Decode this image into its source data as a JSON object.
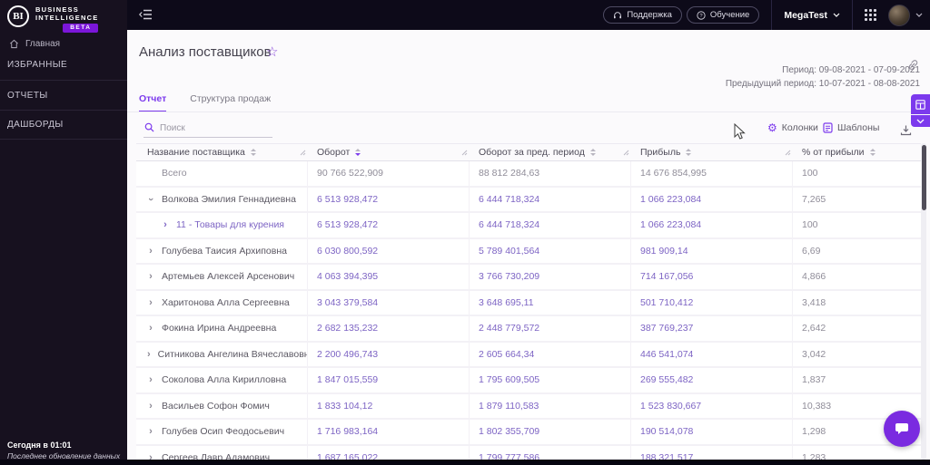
{
  "brand": {
    "logo": "BI",
    "name_line1": "BUSINESS",
    "name_line2": "INTELLIGENCE",
    "beta": "BETA"
  },
  "sidebar": {
    "items": [
      {
        "label": "Главная"
      },
      {
        "label": "ИЗБРАННЫЕ"
      },
      {
        "label": "ОТЧЕТЫ"
      },
      {
        "label": "ДАШБОРДЫ"
      }
    ],
    "footer": {
      "time": "Сегодня в 01:01",
      "caption": "Последнее обновление данных"
    }
  },
  "topbar": {
    "support": "Поддержка",
    "training": "Обучение",
    "workspace": "MegaTest"
  },
  "page": {
    "title": "Анализ поставщиков",
    "period": "Период: 09-08-2021 - 07-09-2021",
    "prev_period": "Предыдущий период: 10-07-2021 - 08-08-2021"
  },
  "tabs": [
    {
      "label": "Отчет",
      "active": true
    },
    {
      "label": "Структура продаж",
      "active": false
    }
  ],
  "toolbar": {
    "search_placeholder": "Поиск",
    "columns_label": "Колонки",
    "templates_label": "Шаблоны"
  },
  "icons": {
    "favorite_star": "☆",
    "columns_gear": "⚙",
    "expand_chevron": "›",
    "search": "magnifier",
    "templates": "document",
    "download": "download-arrow",
    "link": "chain",
    "apps": "grid-3x3",
    "support": "headset",
    "training": "question-circle",
    "chat": "speech-bubble"
  },
  "colors": {
    "accent": "#7c3aed",
    "number_text": "#7d64c4",
    "beta_badge": "#7b16d9",
    "fab": "#7a2be0"
  },
  "table": {
    "columns": [
      "Название поставщика",
      "Оборот",
      "Оборот за пред. период",
      "Прибыль",
      "% от прибыли"
    ],
    "sorted_column_index": 1,
    "sort_direction": "desc",
    "rows": [
      {
        "type": "total",
        "name": "Всего",
        "turnover": "90 766 522,909",
        "prev": "88 812 284,63",
        "profit": "14 676 854,995",
        "pct": "100"
      },
      {
        "type": "expanded",
        "name": "Волкова Эмилия Геннадиевна",
        "turnover": "6 513 928,472",
        "prev": "6 444 718,324",
        "profit": "1 066 223,084",
        "pct": "7,265"
      },
      {
        "type": "child",
        "name": "11 - Товары для курения",
        "turnover": "6 513 928,472",
        "prev": "6 444 718,324",
        "profit": "1 066 223,084",
        "pct": "100"
      },
      {
        "type": "row",
        "name": "Голубева Таисия Архиповна",
        "turnover": "6 030 800,592",
        "prev": "5 789 401,564",
        "profit": "981 909,14",
        "pct": "6,69"
      },
      {
        "type": "row",
        "name": "Артемьев Алексей Арсенович",
        "turnover": "4 063 394,395",
        "prev": "3 766 730,209",
        "profit": "714 167,056",
        "pct": "4,866"
      },
      {
        "type": "row",
        "name": "Харитонова Алла Сергеевна",
        "turnover": "3 043 379,584",
        "prev": "3 648 695,11",
        "profit": "501 710,412",
        "pct": "3,418"
      },
      {
        "type": "row",
        "name": "Фокина Ирина Андреевна",
        "turnover": "2 682 135,232",
        "prev": "2 448 779,572",
        "profit": "387 769,237",
        "pct": "2,642"
      },
      {
        "type": "row",
        "name": "Ситникова Ангелина Вячеславовна",
        "turnover": "2 200 496,743",
        "prev": "2 605 664,34",
        "profit": "446 541,074",
        "pct": "3,042"
      },
      {
        "type": "row",
        "name": "Соколова Алла Кирилловна",
        "turnover": "1 847 015,559",
        "prev": "1 795 609,505",
        "profit": "269 555,482",
        "pct": "1,837"
      },
      {
        "type": "row",
        "name": "Васильев Софон Фомич",
        "turnover": "1 833 104,12",
        "prev": "1 879 110,583",
        "profit": "1 523 830,667",
        "pct": "10,383"
      },
      {
        "type": "row",
        "name": "Голубев Осип Феодосьевич",
        "turnover": "1 716 983,164",
        "prev": "1 802 355,709",
        "profit": "190 514,078",
        "pct": "1,298"
      },
      {
        "type": "row",
        "name": "Сергеев Лавр Адамович",
        "turnover": "1 687 165,022",
        "prev": "1 799 777,586",
        "profit": "188 321,517",
        "pct": "1,283"
      }
    ]
  }
}
